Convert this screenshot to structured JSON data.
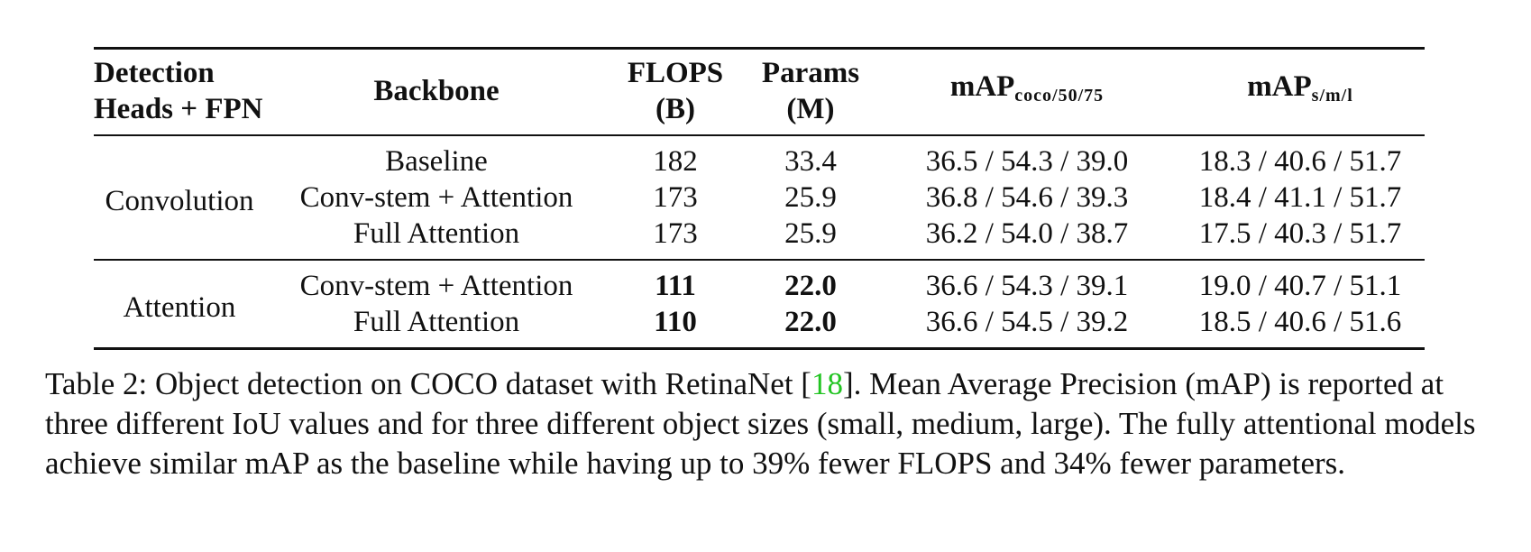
{
  "table": {
    "headers": {
      "heads_line1": "Detection",
      "heads_line2": "Heads + FPN",
      "backbone": "Backbone",
      "flops_line1": "FLOPS",
      "flops_line2": "(B)",
      "params_line1": "Params",
      "params_line2": "(M)",
      "map1_main": "mAP",
      "map1_sub": "coco/50/75",
      "map2_main": "mAP",
      "map2_sub": "s/m/l"
    },
    "groups": [
      {
        "head": "Convolution",
        "rows": [
          {
            "backbone": "Baseline",
            "flops": "182",
            "params": "33.4",
            "map_coco": "36.5 / 54.3 / 39.0",
            "map_sml": "18.3 / 40.6 / 51.7"
          },
          {
            "backbone": "Conv-stem + Attention",
            "flops": "173",
            "params": "25.9",
            "map_coco": "36.8 / 54.6 / 39.3",
            "map_sml": "18.4 / 41.1 / 51.7"
          },
          {
            "backbone": "Full Attention",
            "flops": "173",
            "params": "25.9",
            "map_coco": "36.2 / 54.0 / 38.7",
            "map_sml": "17.5 / 40.3 / 51.7"
          }
        ]
      },
      {
        "head": "Attention",
        "rows": [
          {
            "backbone": "Conv-stem + Attention",
            "flops": "111",
            "params": "22.0",
            "map_coco": "36.6 / 54.3 / 39.1",
            "map_sml": "19.0 / 40.7 / 51.1"
          },
          {
            "backbone": "Full Attention",
            "flops": "110",
            "params": "22.0",
            "map_coco": "36.6 / 54.5 / 39.2",
            "map_sml": "18.5 / 40.6 / 51.6"
          }
        ]
      }
    ]
  },
  "caption": {
    "prefix": "Table 2: Object detection on COCO dataset with RetinaNet [",
    "citation": "18",
    "suffix": "]. Mean Average Precision (mAP) is reported at three different IoU values and for three different object sizes (small, medium, large). The fully attentional models achieve similar mAP as the baseline while having up to 39% fewer FLOPS and 34% fewer parameters."
  }
}
